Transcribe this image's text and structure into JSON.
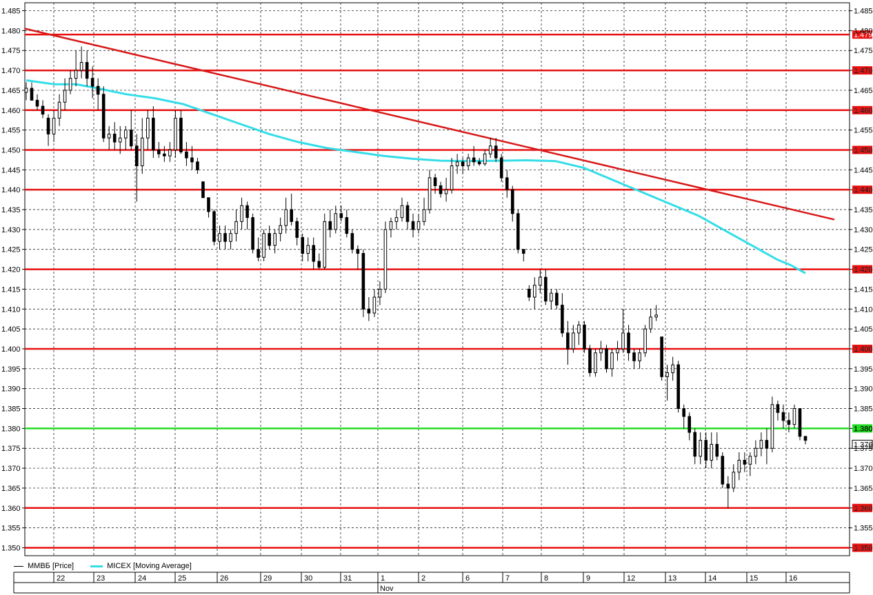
{
  "chart_data": {
    "type": "candlestick",
    "y_range": [
      1.348,
      1.487
    ],
    "y_ticks": [
      "1.485",
      "1.480",
      "1.475",
      "1.470",
      "1.465",
      "1.460",
      "1.455",
      "1.450",
      "1.445",
      "1.440",
      "1.435",
      "1.430",
      "1.425",
      "1.420",
      "1.415",
      "1.410",
      "1.405",
      "1.400",
      "1.395",
      "1.390",
      "1.385",
      "1.380",
      "1.375",
      "1.370",
      "1.365",
      "1.360",
      "1.355",
      "1.350"
    ],
    "y_tick_values": [
      1.485,
      1.48,
      1.475,
      1.47,
      1.465,
      1.46,
      1.455,
      1.45,
      1.445,
      1.44,
      1.435,
      1.43,
      1.425,
      1.42,
      1.415,
      1.41,
      1.405,
      1.4,
      1.395,
      1.39,
      1.385,
      1.38,
      1.375,
      1.37,
      1.365,
      1.36,
      1.355,
      1.35
    ],
    "dates": [
      "22",
      "23",
      "24",
      "25",
      "26",
      "29",
      "30",
      "31",
      "1",
      "2",
      "6",
      "7",
      "8",
      "9",
      "12",
      "13",
      "14",
      "15",
      "16"
    ],
    "month_label": "Nov",
    "month_start_index": 8,
    "levels": [
      {
        "value": 1.479,
        "label": "1.479",
        "color": "#e81010"
      },
      {
        "value": 1.47,
        "label": "1.470",
        "color": "#e81010"
      },
      {
        "value": 1.46,
        "label": "1.460",
        "color": "#e81010"
      },
      {
        "value": 1.45,
        "label": "1.450",
        "color": "#e81010"
      },
      {
        "value": 1.44,
        "label": "1.440",
        "color": "#e81010"
      },
      {
        "value": 1.42,
        "label": "1.420",
        "color": "#e81010"
      },
      {
        "value": 1.4,
        "label": "1.400",
        "color": "#e81010"
      },
      {
        "value": 1.38,
        "label": "1.380",
        "color": "#22dd22"
      },
      {
        "value": 1.36,
        "label": "1.360",
        "color": "#e81010"
      },
      {
        "value": 1.35,
        "label": "1.350",
        "color": "#e81010"
      }
    ],
    "last_price": {
      "value": 1.376,
      "label": "1.376"
    },
    "trendline": {
      "start": {
        "day": 22,
        "value": 1.4805
      },
      "end": {
        "day": 16,
        "value": 1.4325
      },
      "color": "#d81818"
    },
    "series": [
      {
        "name": "MMBБ [Price]",
        "type": "candlestick"
      },
      {
        "name": "MICEX [Moving Average]",
        "type": "line",
        "color": "#33dde8"
      }
    ],
    "moving_average": [
      [
        0,
        1.4675
      ],
      [
        2,
        1.467
      ],
      [
        4,
        1.4665
      ],
      [
        7,
        1.4665
      ],
      [
        10,
        1.4655
      ],
      [
        14,
        1.464
      ],
      [
        18,
        1.463
      ],
      [
        22,
        1.4615
      ],
      [
        26,
        1.459
      ],
      [
        30,
        1.4565
      ],
      [
        34,
        1.454
      ],
      [
        38,
        1.452
      ],
      [
        42,
        1.4505
      ],
      [
        46,
        1.4495
      ],
      [
        50,
        1.4485
      ],
      [
        54,
        1.4478
      ],
      [
        58,
        1.4473
      ],
      [
        62,
        1.4472
      ],
      [
        66,
        1.4473
      ],
      [
        70,
        1.4474
      ],
      [
        74,
        1.4472
      ],
      [
        78,
        1.4455
      ],
      [
        82,
        1.4425
      ],
      [
        86,
        1.4395
      ],
      [
        90,
        1.4365
      ],
      [
        94,
        1.4335
      ],
      [
        98,
        1.4295
      ],
      [
        102,
        1.4255
      ],
      [
        105,
        1.4225
      ],
      [
        107,
        1.421
      ],
      [
        109,
        1.419
      ]
    ],
    "candles": [
      [
        1.4645,
        1.467,
        1.4625,
        1.4655
      ],
      [
        1.4655,
        1.467,
        1.463,
        1.4625
      ],
      [
        1.4625,
        1.464,
        1.46,
        1.461
      ],
      [
        1.461,
        1.4625,
        1.458,
        1.459
      ],
      [
        1.458,
        1.459,
        1.451,
        1.454
      ],
      [
        1.454,
        1.46,
        1.452,
        1.458
      ],
      [
        1.458,
        1.464,
        1.456,
        1.462
      ],
      [
        1.462,
        1.468,
        1.46,
        1.465
      ],
      [
        1.465,
        1.47,
        1.464,
        1.468
      ],
      [
        1.468,
        1.475,
        1.466,
        1.47
      ],
      [
        1.47,
        1.476,
        1.468,
        1.472
      ],
      [
        1.472,
        1.475,
        1.466,
        1.468
      ],
      [
        1.468,
        1.471,
        1.463,
        1.466
      ],
      [
        1.466,
        1.468,
        1.46,
        1.464
      ],
      [
        1.464,
        1.466,
        1.452,
        1.453
      ],
      [
        1.453,
        1.456,
        1.45,
        1.454
      ],
      [
        1.454,
        1.457,
        1.45,
        1.452
      ],
      [
        1.452,
        1.456,
        1.449,
        1.453
      ],
      [
        1.453,
        1.456,
        1.45,
        1.455
      ],
      [
        1.455,
        1.46,
        1.45,
        1.451
      ],
      [
        1.451,
        1.454,
        1.437,
        1.446
      ],
      [
        1.446,
        1.458,
        1.444,
        1.453
      ],
      [
        1.453,
        1.46,
        1.45,
        1.458
      ],
      [
        1.458,
        1.461,
        1.448,
        1.45
      ],
      [
        1.45,
        1.452,
        1.448,
        1.449
      ],
      [
        1.449,
        1.451,
        1.447,
        1.4485
      ],
      [
        1.4485,
        1.452,
        1.447,
        1.45
      ],
      [
        1.45,
        1.46,
        1.448,
        1.458
      ],
      [
        1.458,
        1.46,
        1.449,
        1.4495
      ],
      [
        1.4495,
        1.452,
        1.446,
        1.448
      ],
      [
        1.448,
        1.451,
        1.445,
        1.447
      ],
      [
        1.447,
        1.448,
        1.444,
        1.445
      ],
      [
        1.442,
        1.442,
        1.438,
        1.438
      ],
      [
        1.438,
        1.438,
        1.433,
        1.4345
      ],
      [
        1.4345,
        1.435,
        1.426,
        1.427
      ],
      [
        1.427,
        1.431,
        1.425,
        1.429
      ],
      [
        1.429,
        1.431,
        1.425,
        1.427
      ],
      [
        1.427,
        1.43,
        1.425,
        1.429
      ],
      [
        1.429,
        1.435,
        1.427,
        1.432
      ],
      [
        1.432,
        1.438,
        1.43,
        1.436
      ],
      [
        1.436,
        1.437,
        1.43,
        1.433
      ],
      [
        1.433,
        1.434,
        1.424,
        1.425
      ],
      [
        1.425,
        1.428,
        1.422,
        1.423
      ],
      [
        1.423,
        1.43,
        1.422,
        1.429
      ],
      [
        1.429,
        1.431,
        1.425,
        1.426
      ],
      [
        1.426,
        1.43,
        1.424,
        1.429
      ],
      [
        1.429,
        1.433,
        1.427,
        1.431
      ],
      [
        1.431,
        1.438,
        1.429,
        1.435
      ],
      [
        1.435,
        1.439,
        1.431,
        1.432
      ],
      [
        1.432,
        1.433,
        1.426,
        1.428
      ],
      [
        1.428,
        1.429,
        1.422,
        1.424
      ],
      [
        1.424,
        1.428,
        1.422,
        1.426
      ],
      [
        1.426,
        1.428,
        1.42,
        1.422
      ],
      [
        1.422,
        1.424,
        1.42,
        1.4205
      ],
      [
        1.4205,
        1.434,
        1.42,
        1.432
      ],
      [
        1.432,
        1.435,
        1.428,
        1.43
      ],
      [
        1.43,
        1.436,
        1.429,
        1.434
      ],
      [
        1.434,
        1.436,
        1.432,
        1.433
      ],
      [
        1.433,
        1.435,
        1.428,
        1.429
      ],
      [
        1.429,
        1.43,
        1.424,
        1.425
      ],
      [
        1.425,
        1.426,
        1.42,
        1.424
      ],
      [
        1.424,
        1.425,
        1.408,
        1.41
      ],
      [
        1.41,
        1.413,
        1.407,
        1.409
      ],
      [
        1.409,
        1.415,
        1.408,
        1.413
      ],
      [
        1.413,
        1.417,
        1.411,
        1.415
      ],
      [
        1.415,
        1.432,
        1.414,
        1.43
      ],
      [
        1.43,
        1.433,
        1.428,
        1.432
      ],
      [
        1.432,
        1.435,
        1.43,
        1.433
      ],
      [
        1.433,
        1.438,
        1.432,
        1.436
      ],
      [
        1.436,
        1.437,
        1.43,
        1.432
      ],
      [
        1.432,
        1.434,
        1.428,
        1.43
      ],
      [
        1.43,
        1.434,
        1.429,
        1.432
      ],
      [
        1.432,
        1.438,
        1.431,
        1.435
      ],
      [
        1.435,
        1.445,
        1.434,
        1.443
      ],
      [
        1.443,
        1.444,
        1.439,
        1.441
      ],
      [
        1.441,
        1.442,
        1.438,
        1.439
      ],
      [
        1.439,
        1.443,
        1.437,
        1.44
      ],
      [
        1.44,
        1.448,
        1.439,
        1.446
      ],
      [
        1.446,
        1.449,
        1.444,
        1.447
      ],
      [
        1.447,
        1.448,
        1.444,
        1.446
      ],
      [
        1.446,
        1.449,
        1.445,
        1.448
      ],
      [
        1.448,
        1.451,
        1.446,
        1.447
      ],
      [
        1.447,
        1.448,
        1.446,
        1.4465
      ],
      [
        1.4465,
        1.45,
        1.446,
        1.449
      ],
      [
        1.449,
        1.453,
        1.448,
        1.451
      ],
      [
        1.451,
        1.453,
        1.447,
        1.448
      ],
      [
        1.448,
        1.449,
        1.442,
        1.443
      ],
      [
        1.443,
        1.445,
        1.438,
        1.44
      ],
      [
        1.44,
        1.441,
        1.432,
        1.434
      ],
      [
        1.434,
        1.435,
        1.424,
        1.425
      ],
      [
        1.425,
        1.425,
        1.422,
        1.424
      ],
      [
        1.415,
        1.416,
        1.412,
        1.413
      ],
      [
        1.413,
        1.418,
        1.41,
        1.416
      ],
      [
        1.416,
        1.42,
        1.414,
        1.418
      ],
      [
        1.418,
        1.42,
        1.411,
        1.412
      ],
      [
        1.412,
        1.415,
        1.41,
        1.414
      ],
      [
        1.414,
        1.415,
        1.41,
        1.411
      ],
      [
        1.411,
        1.414,
        1.403,
        1.404
      ],
      [
        1.404,
        1.407,
        1.396,
        1.4
      ],
      [
        1.4,
        1.406,
        1.399,
        1.404
      ],
      [
        1.404,
        1.407,
        1.401,
        1.406
      ],
      [
        1.406,
        1.407,
        1.399,
        1.4
      ],
      [
        1.4,
        1.401,
        1.393,
        1.394
      ],
      [
        1.394,
        1.4,
        1.393,
        1.399
      ],
      [
        1.399,
        1.402,
        1.397,
        1.4
      ],
      [
        1.4,
        1.401,
        1.394,
        1.395
      ],
      [
        1.395,
        1.4,
        1.393,
        1.399
      ],
      [
        1.399,
        1.402,
        1.397,
        1.4
      ],
      [
        1.4,
        1.41,
        1.399,
        1.404
      ],
      [
        1.404,
        1.406,
        1.397,
        1.399
      ]
    ],
    "tail_candles": [
      [
        1.399,
        1.4,
        1.395,
        1.397
      ],
      [
        1.397,
        1.4,
        1.395,
        1.399
      ],
      [
        1.399,
        1.406,
        1.398,
        1.405
      ],
      [
        1.405,
        1.41,
        1.404,
        1.408
      ],
      [
        1.408,
        1.411,
        1.407,
        1.4085
      ],
      [
        1.403,
        1.403,
        1.392,
        1.393
      ],
      [
        1.393,
        1.396,
        1.387,
        1.394
      ],
      [
        1.394,
        1.398,
        1.392,
        1.396
      ],
      [
        1.396,
        1.397,
        1.384,
        1.385
      ],
      [
        1.385,
        1.386,
        1.38,
        1.383
      ],
      [
        1.383,
        1.384,
        1.377,
        1.379
      ],
      [
        1.379,
        1.38,
        1.371,
        1.373
      ],
      [
        1.373,
        1.379,
        1.371,
        1.377
      ],
      [
        1.377,
        1.379,
        1.37,
        1.372
      ],
      [
        1.372,
        1.379,
        1.37,
        1.376
      ],
      [
        1.376,
        1.379,
        1.372,
        1.373
      ],
      [
        1.373,
        1.374,
        1.365,
        1.366
      ],
      [
        1.366,
        1.368,
        1.36,
        1.365
      ],
      [
        1.365,
        1.371,
        1.364,
        1.369
      ],
      [
        1.369,
        1.374,
        1.367,
        1.372
      ],
      [
        1.372,
        1.374,
        1.369,
        1.371
      ],
      [
        1.371,
        1.374,
        1.368,
        1.373
      ],
      [
        1.373,
        1.377,
        1.371,
        1.375
      ],
      [
        1.375,
        1.379,
        1.373,
        1.377
      ],
      [
        1.377,
        1.38,
        1.371,
        1.375
      ],
      [
        1.375,
        1.388,
        1.374,
        1.386
      ],
      [
        1.386,
        1.387,
        1.382,
        1.384
      ],
      [
        1.384,
        1.386,
        1.38,
        1.382
      ],
      [
        1.382,
        1.384,
        1.379,
        1.381
      ],
      [
        1.381,
        1.386,
        1.38,
        1.385
      ],
      [
        1.385,
        1.385,
        1.377,
        1.378
      ],
      [
        1.378,
        1.378,
        1.376,
        1.377
      ]
    ]
  },
  "legend": {
    "price_label": "MMBБ [Price]",
    "ma_label": "MICEX [Moving Average]"
  }
}
